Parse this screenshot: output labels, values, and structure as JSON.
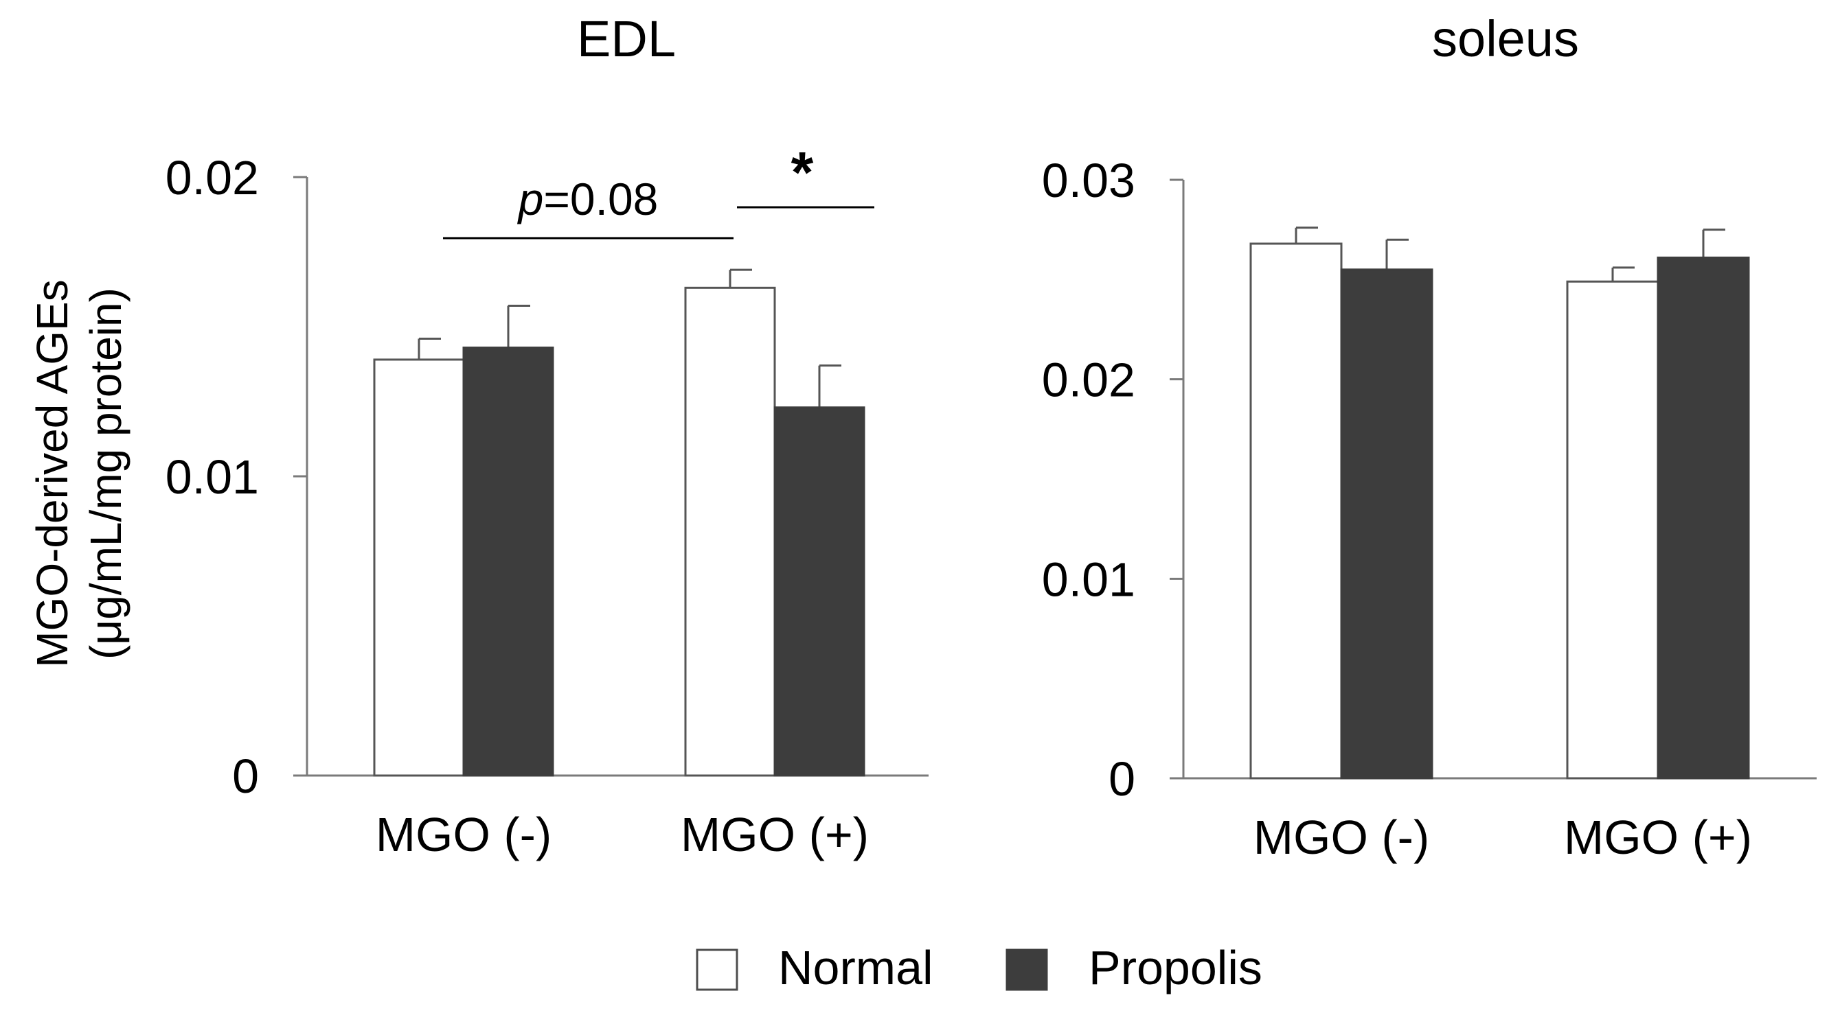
{
  "figure": {
    "ylabel_line1": "MGO-derived AGEs",
    "ylabel_line2": "(μg/mL/mg protein)",
    "legend": [
      {
        "label": "Normal",
        "color": "#ffffff"
      },
      {
        "label": "Propolis",
        "color": "#3d3d3d"
      }
    ]
  },
  "chart_data": [
    {
      "type": "bar",
      "title": "EDL",
      "categories": [
        "MGO (-)",
        "MGO (+)"
      ],
      "ylim": [
        0,
        0.02
      ],
      "yticks": [
        0,
        0.01,
        0.02
      ],
      "ytick_labels": [
        "0",
        "0.01",
        "0.02"
      ],
      "series": [
        {
          "name": "Normal",
          "values": [
            0.0139,
            0.0163
          ],
          "errors": [
            0.0007,
            0.0006
          ]
        },
        {
          "name": "Propolis",
          "values": [
            0.0143,
            0.0123
          ],
          "errors": [
            0.0014,
            0.0014
          ]
        }
      ],
      "annotations": [
        {
          "text": "p=0.08",
          "italic_prefix": "p",
          "rest": "=0.08",
          "between": [
            "MGO (-)|Normal",
            "MGO (+)|Normal"
          ]
        },
        {
          "text": "*",
          "between": [
            "MGO (+)|Normal",
            "MGO (+)|Propolis"
          ]
        }
      ]
    },
    {
      "type": "bar",
      "title": "soleus",
      "categories": [
        "MGO (-)",
        "MGO (+)"
      ],
      "ylim": [
        0,
        0.03
      ],
      "yticks": [
        0,
        0.01,
        0.02,
        0.03
      ],
      "ytick_labels": [
        "0",
        "0.01",
        "0.02",
        "0.03"
      ],
      "series": [
        {
          "name": "Normal",
          "values": [
            0.0268,
            0.0249
          ],
          "errors": [
            0.0008,
            0.0007
          ]
        },
        {
          "name": "Propolis",
          "values": [
            0.0255,
            0.0261
          ],
          "errors": [
            0.0015,
            0.0014
          ]
        }
      ]
    }
  ]
}
